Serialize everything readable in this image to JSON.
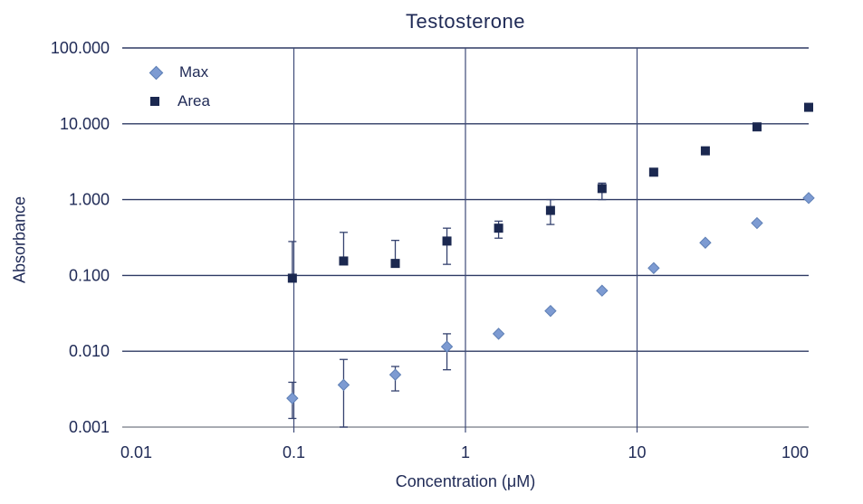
{
  "colors": {
    "text": "#1F2A56",
    "grid": "#2E3A63",
    "vgrid": "#3E4B78",
    "axis": "#8C8F99",
    "error_bar": "#35426F",
    "max_fill": "#7D9BD2",
    "max_edge": "#5E7FB5",
    "area_fill": "#1B2850"
  },
  "chart_data": {
    "type": "scatter",
    "title": "Testosterone",
    "xlabel": "Concentration (μM)",
    "ylabel": "Absorbance",
    "x_scale": "log",
    "y_scale": "log",
    "xlim": [
      0.01,
      100
    ],
    "ylim": [
      0.001,
      100
    ],
    "grid": true,
    "legend_position": "top-left-inside",
    "x_ticks": [
      {
        "value": 0.01,
        "label": "0.01"
      },
      {
        "value": 0.1,
        "label": "0.1"
      },
      {
        "value": 1,
        "label": "1"
      },
      {
        "value": 10,
        "label": "10"
      },
      {
        "value": 100,
        "label": "100"
      }
    ],
    "y_ticks": [
      {
        "value": 100,
        "label": "100.000"
      },
      {
        "value": 10,
        "label": "10.000"
      },
      {
        "value": 1,
        "label": "1.000"
      },
      {
        "value": 0.1,
        "label": "0.100"
      },
      {
        "value": 0.01,
        "label": "0.010"
      },
      {
        "value": 0.001,
        "label": "0.001"
      }
    ],
    "vertical_gridlines": [
      0.1,
      1,
      10
    ],
    "x": [
      0.098,
      0.195,
      0.39,
      0.78,
      1.56,
      3.13,
      6.25,
      12.5,
      25,
      50,
      100
    ],
    "series": [
      {
        "name": "Max",
        "marker": "diamond",
        "color": "#7D9BD2",
        "edge_color": "#5E7FB5",
        "values": [
          0.0024,
          0.0036,
          0.0049,
          0.0115,
          0.017,
          0.034,
          0.063,
          0.125,
          0.27,
          0.49,
          1.05
        ],
        "err_low": [
          0.0013,
          0.001,
          0.003,
          0.0057,
          null,
          null,
          null,
          null,
          null,
          null,
          null
        ],
        "err_high": [
          0.0039,
          0.0078,
          0.0063,
          0.017,
          null,
          null,
          null,
          null,
          null,
          null,
          null
        ]
      },
      {
        "name": "Area",
        "marker": "square",
        "color": "#1B2850",
        "edge_color": "#1B2850",
        "values": [
          0.092,
          0.155,
          0.144,
          0.284,
          0.42,
          0.72,
          1.4,
          2.3,
          4.4,
          9.1,
          16.5
        ],
        "err_low": [
          null,
          null,
          null,
          0.14,
          0.31,
          0.47,
          1.0,
          null,
          null,
          null,
          null
        ],
        "err_high": [
          0.28,
          0.37,
          0.29,
          0.42,
          0.52,
          1.0,
          1.65,
          null,
          null,
          null,
          null
        ]
      }
    ]
  }
}
